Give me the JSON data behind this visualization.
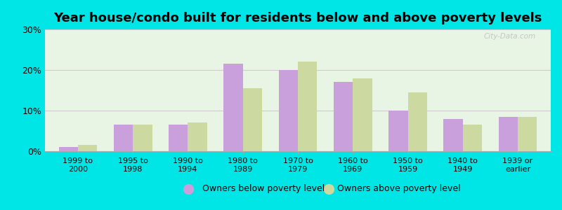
{
  "title": "Year house/condo built for residents below and above poverty levels",
  "categories": [
    "1999 to\n2000",
    "1995 to\n1998",
    "1990 to\n1994",
    "1980 to\n1989",
    "1970 to\n1979",
    "1960 to\n1969",
    "1950 to\n1959",
    "1940 to\n1949",
    "1939 or\nearlier"
  ],
  "below_poverty": [
    1.0,
    6.5,
    6.5,
    21.5,
    20.0,
    17.0,
    10.0,
    8.0,
    8.5
  ],
  "above_poverty": [
    1.5,
    6.5,
    7.0,
    15.5,
    22.0,
    18.0,
    14.5,
    6.5,
    8.5
  ],
  "color_below": "#c9a0dc",
  "color_above": "#ccd9a0",
  "ylim": [
    0,
    30
  ],
  "yticks": [
    0,
    10,
    20,
    30
  ],
  "ytick_labels": [
    "0%",
    "10%",
    "20%",
    "30%"
  ],
  "outer_bg": "#00e5e5",
  "plot_bg": "#e8f5e5",
  "legend_below": "Owners below poverty level",
  "legend_above": "Owners above poverty level",
  "title_fontsize": 13,
  "bar_width": 0.35,
  "watermark": "City-Data.com"
}
